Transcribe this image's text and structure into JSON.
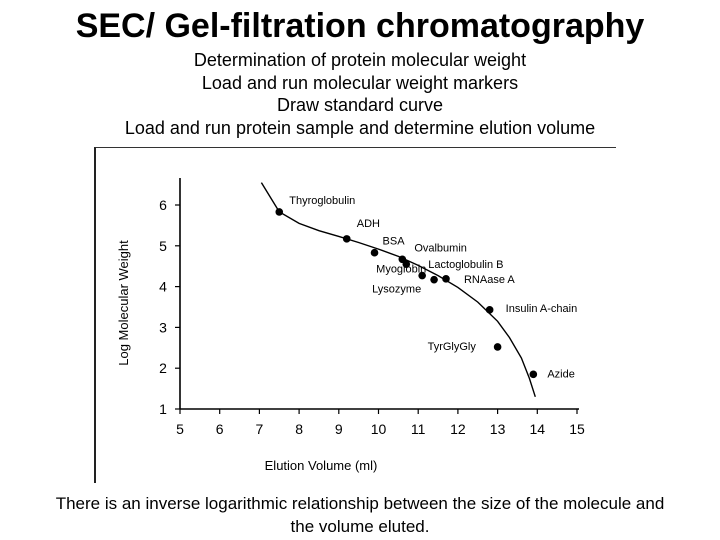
{
  "slide": {
    "title": "SEC/ Gel-filtration chromatography",
    "bullets": [
      "Determination of protein molecular weight",
      "Load and run molecular weight markers",
      "Draw standard curve",
      "Load and run protein sample and determine elution volume"
    ],
    "caption_line1": "There is an inverse logarithmic relationship between the size of the molecule and",
    "caption_line2": "the volume eluted."
  },
  "chart_data": {
    "type": "scatter",
    "title": "",
    "xlabel": "Elution Volume (ml)",
    "ylabel": "Log Molecular Weight",
    "xlim": [
      5,
      15
    ],
    "ylim": [
      1,
      6.5
    ],
    "xticks": [
      5,
      6,
      7,
      8,
      9,
      10,
      11,
      12,
      13,
      14,
      15
    ],
    "yticks": [
      1,
      2,
      3,
      4,
      5,
      6
    ],
    "grid": false,
    "points": [
      {
        "label": "Thyroglobulin",
        "x": 7.5,
        "y": 5.83
      },
      {
        "label": "ADH",
        "x": 9.2,
        "y": 5.17
      },
      {
        "label": "BSA",
        "x": 9.9,
        "y": 4.83
      },
      {
        "label": "Ovalbumin",
        "x": 10.6,
        "y": 4.67
      },
      {
        "label": "Lactoglobulin B",
        "x": 10.7,
        "y": 4.55
      },
      {
        "label": "Myoglobin",
        "x": 11.1,
        "y": 4.27
      },
      {
        "label": "Lysozyme",
        "x": 11.4,
        "y": 4.17
      },
      {
        "label": "RNAase A",
        "x": 11.7,
        "y": 4.19
      },
      {
        "label": "Insulin A-chain",
        "x": 12.8,
        "y": 3.43
      },
      {
        "label": "TyrGlyGly",
        "x": 13.0,
        "y": 2.52
      },
      {
        "label": "Azide",
        "x": 13.9,
        "y": 1.85
      }
    ],
    "curve": [
      [
        7.05,
        6.55
      ],
      [
        7.5,
        5.83
      ],
      [
        8.0,
        5.55
      ],
      [
        8.5,
        5.37
      ],
      [
        9.0,
        5.23
      ],
      [
        9.5,
        5.08
      ],
      [
        10.0,
        4.92
      ],
      [
        10.5,
        4.74
      ],
      [
        11.0,
        4.52
      ],
      [
        11.5,
        4.27
      ],
      [
        12.0,
        3.98
      ],
      [
        12.5,
        3.62
      ],
      [
        13.0,
        3.15
      ],
      [
        13.3,
        2.75
      ],
      [
        13.6,
        2.25
      ],
      [
        13.8,
        1.75
      ],
      [
        13.95,
        1.3
      ]
    ]
  }
}
